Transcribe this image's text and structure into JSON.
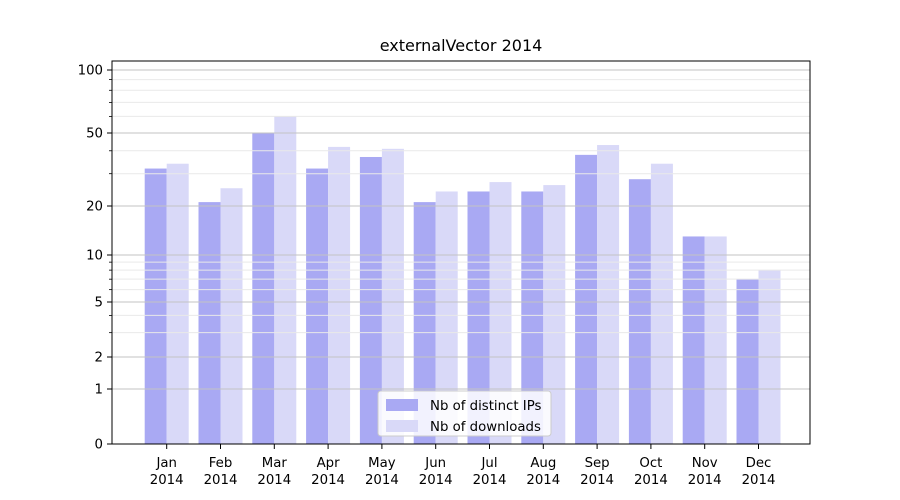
{
  "chart_data": {
    "type": "bar",
    "title": "externalVector 2014",
    "categories": [
      {
        "month": "Jan",
        "year": "2014"
      },
      {
        "month": "Feb",
        "year": "2014"
      },
      {
        "month": "Mar",
        "year": "2014"
      },
      {
        "month": "Apr",
        "year": "2014"
      },
      {
        "month": "May",
        "year": "2014"
      },
      {
        "month": "Jun",
        "year": "2014"
      },
      {
        "month": "Jul",
        "year": "2014"
      },
      {
        "month": "Aug",
        "year": "2014"
      },
      {
        "month": "Sep",
        "year": "2014"
      },
      {
        "month": "Oct",
        "year": "2014"
      },
      {
        "month": "Nov",
        "year": "2014"
      },
      {
        "month": "Dec",
        "year": "2014"
      }
    ],
    "series": [
      {
        "name": "Nb of distinct IPs",
        "color": "#a9a9f3",
        "values": [
          32,
          21,
          50,
          32,
          37,
          21,
          24,
          24,
          38,
          28,
          13,
          7
        ]
      },
      {
        "name": "Nb of downloads",
        "color": "#d9d9f8",
        "values": [
          34,
          25,
          60,
          42,
          41,
          24,
          27,
          26,
          43,
          34,
          13,
          8
        ]
      }
    ],
    "xlabel": "",
    "ylabel": "",
    "y_axis": {
      "scale": "log-like with zero baseline",
      "tick_labels": [
        "100",
        "50",
        "20",
        "10",
        "5",
        "2",
        "1",
        "0"
      ],
      "tick_values": [
        100,
        50,
        20,
        10,
        5,
        2,
        1,
        0
      ],
      "minor_tick_values": [
        3,
        4,
        6,
        7,
        8,
        9,
        30,
        40,
        60,
        70,
        80,
        90
      ],
      "ylim": [
        0,
        110
      ]
    },
    "grid": {
      "major": true,
      "minor": true,
      "orientation": "horizontal",
      "above_bars": true
    },
    "legend": {
      "position": "lower center",
      "entries": [
        "Nb of distinct IPs",
        "Nb of downloads"
      ]
    },
    "colors": {
      "grid_major": "#c3c3c3",
      "grid_minor": "#e9e9e9",
      "spine": "#000000",
      "text": "#000000",
      "legend_border": "#cccccc",
      "legend_bg": "#ffffff"
    }
  }
}
